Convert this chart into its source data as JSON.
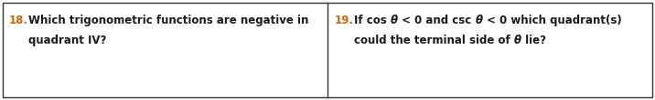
{
  "bg_color": "#ffffff",
  "border_color": "#333333",
  "q18_number": "18.",
  "q18_line1": "Which trigonometric functions are negative in",
  "q18_line2": "quadrant IV?",
  "q19_number": "19.",
  "q19_line1_a": "If cos ",
  "q19_line1_b": "θ",
  "q19_line1_c": " < 0 and csc ",
  "q19_line1_d": "θ",
  "q19_line1_e": " < 0 which quadrant(s)",
  "q19_line2_a": "could the terminal side of ",
  "q19_line2_b": "θ",
  "q19_line2_c": " lie?",
  "number_color": "#c8690a",
  "text_color": "#1a1a1a",
  "font_size": 8.5,
  "fig_width": 7.16,
  "fig_height": 1.1,
  "dpi": 100
}
